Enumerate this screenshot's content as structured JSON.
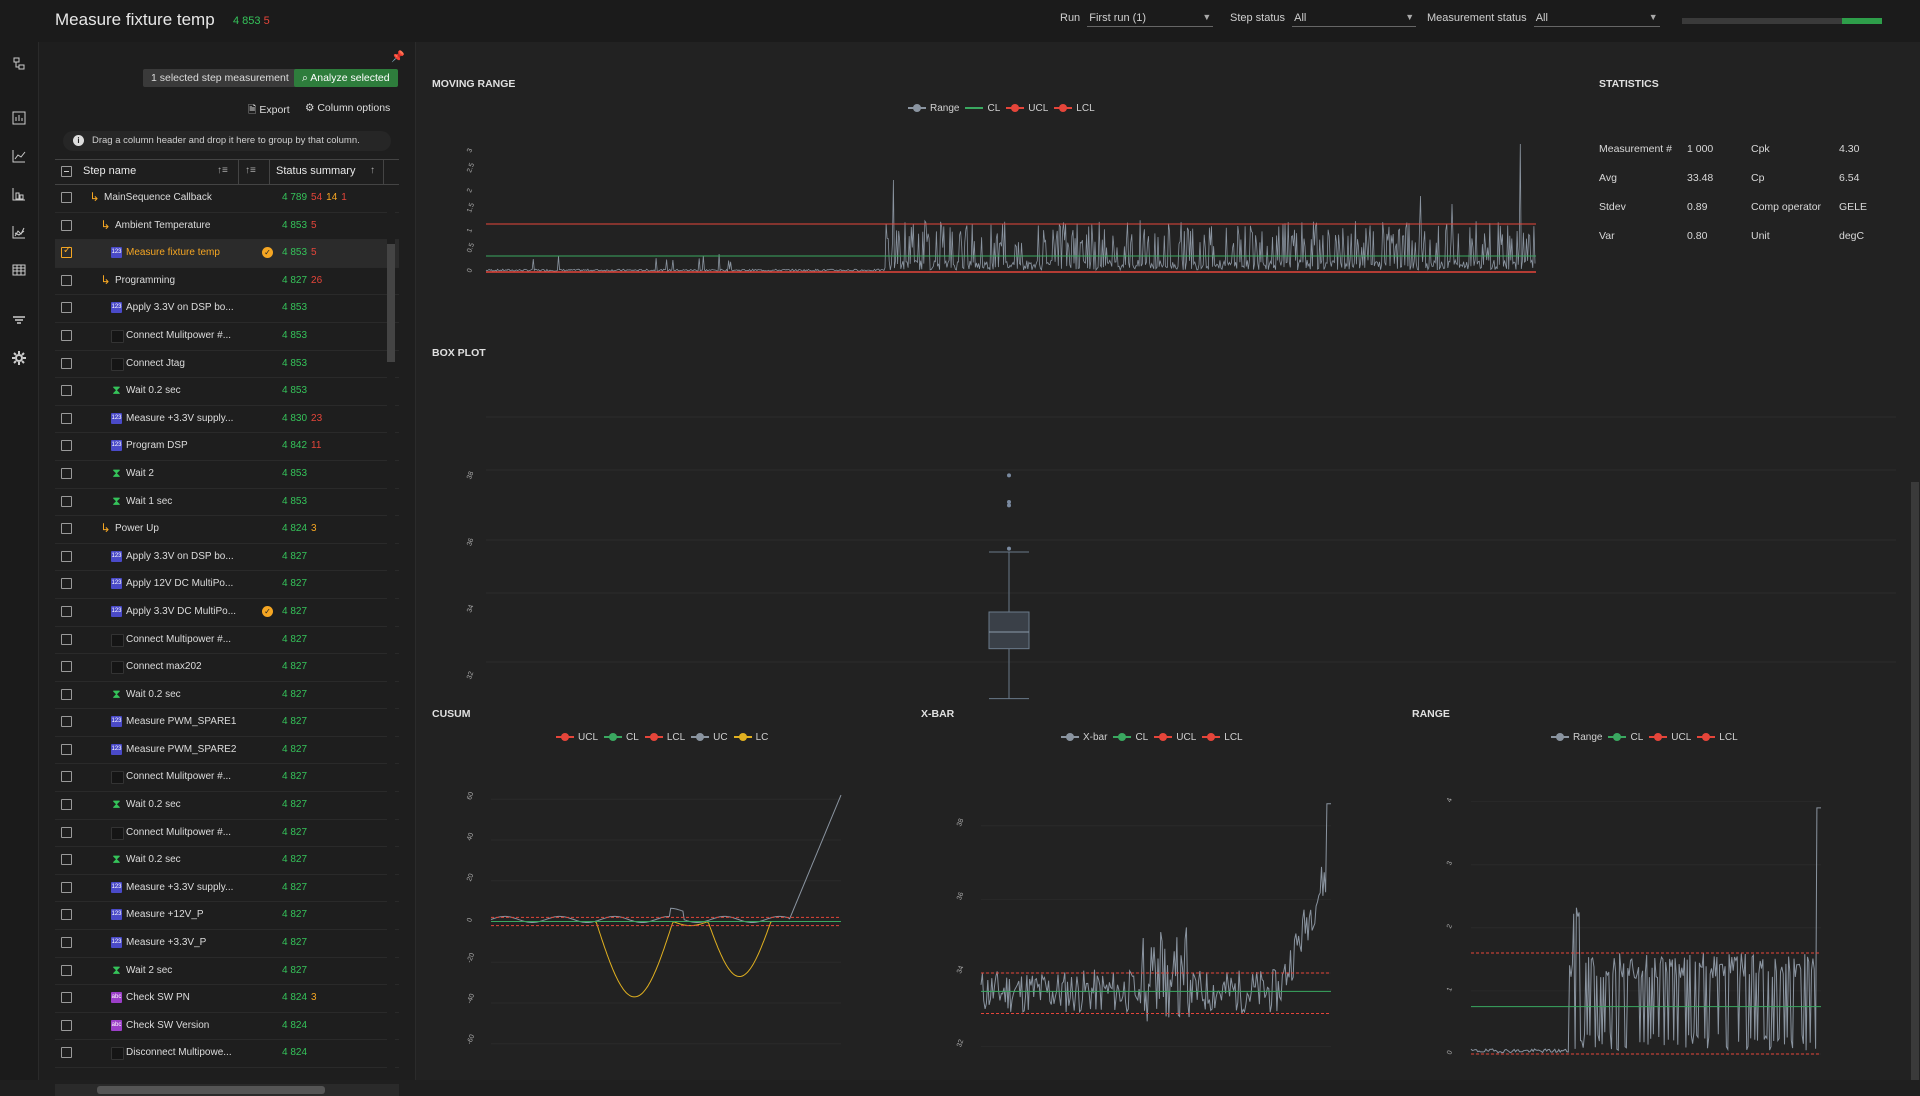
{
  "header": {
    "title": "Measure fixture temp",
    "count_pass": "4 853",
    "count_fail": "5",
    "run_label": "Run",
    "run_value": "First run (1)",
    "step_status_label": "Step status",
    "step_status_value": "All",
    "measurement_status_label": "Measurement status",
    "measurement_status_value": "All",
    "progress_fraction": 0.2
  },
  "nav": {
    "icons": [
      "tree-icon",
      "dashboard-icon",
      "line-chart-icon",
      "bar-chart-icon",
      "area-chart-icon",
      "table-icon",
      "filter-icon",
      "settings-icon"
    ]
  },
  "panel": {
    "selected_label": "1 selected step measurement",
    "analyze_label": "Analyze selected",
    "export_label": "Export",
    "column_options_label": "Column options",
    "group_hint": "Drag a column header and drop it here to group by that column.",
    "col_step_name": "Step name",
    "col_status": "Status summary"
  },
  "rows": [
    {
      "name": "MainSequence Callback",
      "icon": "sequence",
      "indent": 0,
      "pass": "4 789",
      "fail": "54",
      "warn": "14",
      "extra": "1"
    },
    {
      "name": "Ambient Temperature",
      "icon": "sequence",
      "indent": 1,
      "pass": "4 853",
      "fail": "5"
    },
    {
      "name": "Measure fixture temp",
      "icon": "numeric",
      "indent": 2,
      "pass": "4 853",
      "fail": "5",
      "badge": true,
      "selected": true
    },
    {
      "name": "Programming",
      "icon": "sequence",
      "indent": 1,
      "pass": "4 827",
      "fail": "26"
    },
    {
      "name": "Apply 3.3V on DSP bo...",
      "icon": "numeric",
      "indent": 2,
      "pass": "4 853"
    },
    {
      "name": "Connect Mulitpower #...",
      "icon": "action",
      "indent": 2,
      "pass": "4 853"
    },
    {
      "name": "Connect Jtag",
      "icon": "action",
      "indent": 2,
      "pass": "4 853"
    },
    {
      "name": "Wait 0.2 sec",
      "icon": "wait",
      "indent": 2,
      "pass": "4 853"
    },
    {
      "name": "Measure +3.3V supply...",
      "icon": "numeric",
      "indent": 2,
      "pass": "4 830",
      "fail": "23"
    },
    {
      "name": "Program DSP",
      "icon": "numeric",
      "indent": 2,
      "pass": "4 842",
      "fail": "11"
    },
    {
      "name": "Wait 2",
      "icon": "wait",
      "indent": 2,
      "pass": "4 853"
    },
    {
      "name": "Wait 1 sec",
      "icon": "wait",
      "indent": 2,
      "pass": "4 853"
    },
    {
      "name": "Power Up",
      "icon": "sequence",
      "indent": 1,
      "pass": "4 824",
      "warn": "3"
    },
    {
      "name": "Apply 3.3V on DSP bo...",
      "icon": "numeric",
      "indent": 2,
      "pass": "4 827"
    },
    {
      "name": "Apply 12V DC MultiPo...",
      "icon": "numeric",
      "indent": 2,
      "pass": "4 827"
    },
    {
      "name": "Apply 3.3V DC MultiPo...",
      "icon": "numeric",
      "indent": 2,
      "pass": "4 827",
      "badge": true
    },
    {
      "name": "Connect Multipower #...",
      "icon": "action",
      "indent": 2,
      "pass": "4 827"
    },
    {
      "name": "Connect max202",
      "icon": "action",
      "indent": 2,
      "pass": "4 827"
    },
    {
      "name": "Wait 0.2 sec",
      "icon": "wait",
      "indent": 2,
      "pass": "4 827"
    },
    {
      "name": "Measure PWM_SPARE1",
      "icon": "numeric",
      "indent": 2,
      "pass": "4 827"
    },
    {
      "name": "Measure PWM_SPARE2",
      "icon": "numeric",
      "indent": 2,
      "pass": "4 827"
    },
    {
      "name": "Connect Mulitpower #...",
      "icon": "action",
      "indent": 2,
      "pass": "4 827"
    },
    {
      "name": "Wait 0.2 sec",
      "icon": "wait",
      "indent": 2,
      "pass": "4 827"
    },
    {
      "name": "Connect Mulitpower #...",
      "icon": "action",
      "indent": 2,
      "pass": "4 827"
    },
    {
      "name": "Wait 0.2 sec",
      "icon": "wait",
      "indent": 2,
      "pass": "4 827"
    },
    {
      "name": "Measure +3.3V supply...",
      "icon": "numeric",
      "indent": 2,
      "pass": "4 827"
    },
    {
      "name": "Measure +12V_P",
      "icon": "numeric",
      "indent": 2,
      "pass": "4 827"
    },
    {
      "name": "Measure +3.3V_P",
      "icon": "numeric",
      "indent": 2,
      "pass": "4 827"
    },
    {
      "name": "Wait 2 sec",
      "icon": "wait",
      "indent": 2,
      "pass": "4 827"
    },
    {
      "name": "Check SW PN",
      "icon": "string",
      "indent": 2,
      "pass": "4 824",
      "warn": "3"
    },
    {
      "name": "Check SW Version",
      "icon": "string",
      "indent": 2,
      "pass": "4 824"
    },
    {
      "name": "Disconnect Multipowe...",
      "icon": "action",
      "indent": 2,
      "pass": "4 824"
    }
  ],
  "icon_labels": {
    "numeric": "123",
    "string": "abc"
  },
  "sections": {
    "moving_range": "MOVING RANGE",
    "statistics": "STATISTICS",
    "box_plot": "BOX PLOT",
    "cusum": "CUSUM",
    "xbar": "X-BAR",
    "range": "RANGE"
  },
  "legends": {
    "moving_range": [
      {
        "name": "Range",
        "color": "#8a94a0"
      },
      {
        "name": "CL",
        "color": "#3aa860",
        "line": true
      },
      {
        "name": "UCL",
        "color": "#e5453a"
      },
      {
        "name": "LCL",
        "color": "#e5453a"
      }
    ],
    "cusum": [
      {
        "name": "UCL",
        "color": "#e5453a"
      },
      {
        "name": "CL",
        "color": "#3aa860"
      },
      {
        "name": "LCL",
        "color": "#e5453a"
      },
      {
        "name": "UC",
        "color": "#8a94a0"
      },
      {
        "name": "LC",
        "color": "#e0b020"
      }
    ],
    "xbar": [
      {
        "name": "X-bar",
        "color": "#8a94a0"
      },
      {
        "name": "CL",
        "color": "#3aa860"
      },
      {
        "name": "UCL",
        "color": "#e5453a"
      },
      {
        "name": "LCL",
        "color": "#e5453a"
      }
    ],
    "range": [
      {
        "name": "Range",
        "color": "#8a94a0"
      },
      {
        "name": "CL",
        "color": "#3aa860"
      },
      {
        "name": "UCL",
        "color": "#e5453a"
      },
      {
        "name": "LCL",
        "color": "#e5453a"
      }
    ]
  },
  "statistics": {
    "left": [
      {
        "label": "Measurement #",
        "value": "1 000"
      },
      {
        "label": "Avg",
        "value": "33.48"
      },
      {
        "label": "Stdev",
        "value": "0.89"
      },
      {
        "label": "Var",
        "value": "0.80"
      }
    ],
    "right": [
      {
        "label": "Cpk",
        "value": "4.30",
        "highlight": true
      },
      {
        "label": "Cp",
        "value": "6.54",
        "highlight": true
      },
      {
        "label": "Comp operator",
        "value": "GELE"
      },
      {
        "label": "Unit",
        "value": "degC"
      }
    ]
  },
  "chart_data": [
    {
      "type": "line",
      "name": "moving_range",
      "ylim": [
        0,
        3.5
      ],
      "yticks": [
        "0",
        "0.5",
        "1",
        "1.5",
        "2",
        "2.5",
        "3"
      ],
      "cl": 0.4,
      "ucl": 1.2,
      "lcl": 0,
      "n": 1000
    },
    {
      "type": "box",
      "name": "box_plot",
      "yticks": [
        "32",
        "34",
        "36",
        "38"
      ],
      "ylim": [
        31,
        40
      ],
      "min": 31.4,
      "q1": 32.9,
      "median": 33.4,
      "q3": 34.0,
      "max": 35.8,
      "outliers": [
        35.9,
        37.2,
        37.3,
        38.1
      ]
    },
    {
      "type": "line",
      "name": "cusum",
      "yticks": [
        "-60",
        "-40",
        "-20",
        "0",
        "20",
        "40",
        "60"
      ],
      "ylim": [
        -65,
        65
      ],
      "ucl": 2,
      "cl": 0,
      "lcl": -2
    },
    {
      "type": "line",
      "name": "xbar",
      "yticks": [
        "32",
        "34",
        "36",
        "38"
      ],
      "ylim": [
        31.8,
        39
      ],
      "ucl": 34.0,
      "cl": 33.5,
      "lcl": 32.9
    },
    {
      "type": "line",
      "name": "range",
      "yticks": [
        "0",
        "1",
        "2",
        "3",
        "4"
      ],
      "ylim": [
        0,
        4.2
      ],
      "ucl": 1.6,
      "cl": 0.75,
      "lcl": 0
    }
  ]
}
